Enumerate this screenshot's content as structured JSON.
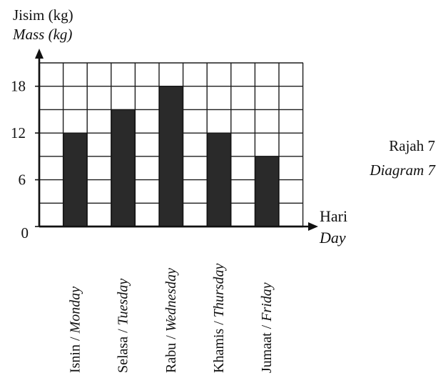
{
  "figure": {
    "ylabel_ms": "Jisim (kg)",
    "ylabel_en": "Mass (kg)",
    "xlabel_ms": "Hari",
    "xlabel_en": "Day",
    "caption_ms": "Rajah 7",
    "caption_en": "Diagram 7"
  },
  "chart_data": {
    "type": "bar",
    "title": "",
    "xlabel": "Hari / Day",
    "ylabel": "Jisim (kg) / Mass (kg)",
    "categories": [
      {
        "ms": "Isnin",
        "en": "Monday"
      },
      {
        "ms": "Selasa",
        "en": "Tuesday"
      },
      {
        "ms": "Rabu",
        "en": "Wednesday"
      },
      {
        "ms": "Khamis",
        "en": "Thursday"
      },
      {
        "ms": "Jumaat",
        "en": "Friday"
      }
    ],
    "values": [
      12,
      15,
      18,
      12,
      9
    ],
    "ylim": [
      0,
      21
    ],
    "yticks": [
      0,
      6,
      12,
      18
    ],
    "grid": true,
    "bar_color": "#2a2a2a"
  }
}
